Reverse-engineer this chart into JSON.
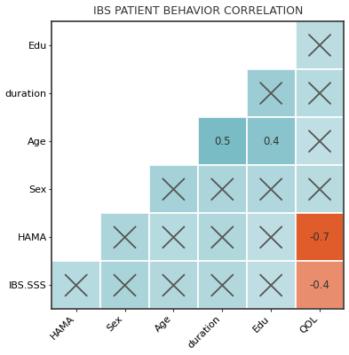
{
  "title": "IBS PATIENT BEHAVIOR CORRELATION",
  "rows": [
    "Edu",
    "duration",
    "Age",
    "Sex",
    "HAMA",
    "IBS.SSS"
  ],
  "cols": [
    "HAMA",
    "Sex",
    "Age",
    "duration",
    "Edu",
    "QOL"
  ],
  "matrix": [
    [
      null,
      null,
      null,
      null,
      null,
      0.08
    ],
    [
      null,
      null,
      null,
      null,
      0.28,
      0.12
    ],
    [
      null,
      null,
      null,
      0.5,
      0.4,
      0.05
    ],
    [
      null,
      null,
      0.22,
      0.18,
      0.15,
      0.1
    ],
    [
      null,
      0.18,
      0.12,
      0.16,
      0.06,
      -0.7
    ],
    [
      0.12,
      0.2,
      0.14,
      0.14,
      0.06,
      -0.4
    ]
  ],
  "show_value": [
    [
      false,
      false,
      false,
      false,
      false,
      false
    ],
    [
      false,
      false,
      false,
      false,
      false,
      false
    ],
    [
      false,
      false,
      false,
      true,
      true,
      false
    ],
    [
      false,
      false,
      false,
      false,
      false,
      false
    ],
    [
      false,
      false,
      false,
      false,
      false,
      true
    ],
    [
      false,
      false,
      false,
      false,
      false,
      true
    ]
  ],
  "active_cells": [
    [
      false,
      false,
      false,
      false,
      false,
      true
    ],
    [
      false,
      false,
      false,
      false,
      true,
      true
    ],
    [
      false,
      false,
      false,
      true,
      true,
      true
    ],
    [
      false,
      false,
      true,
      true,
      true,
      true
    ],
    [
      false,
      true,
      true,
      true,
      true,
      true
    ],
    [
      true,
      true,
      true,
      true,
      true,
      true
    ]
  ],
  "bg_color": "#ffffff",
  "white_cell": "#ffffff",
  "pos_color_strong": "#5aadb7",
  "pos_color_weak": "#c8e3e7",
  "neg_color_strong": "#e05c2a",
  "neg_color_weak": "#f5cfc3",
  "text_color": "#333333",
  "x_color": "#555555",
  "title_fontsize": 9,
  "label_fontsize": 8,
  "spine_color": "#333333"
}
